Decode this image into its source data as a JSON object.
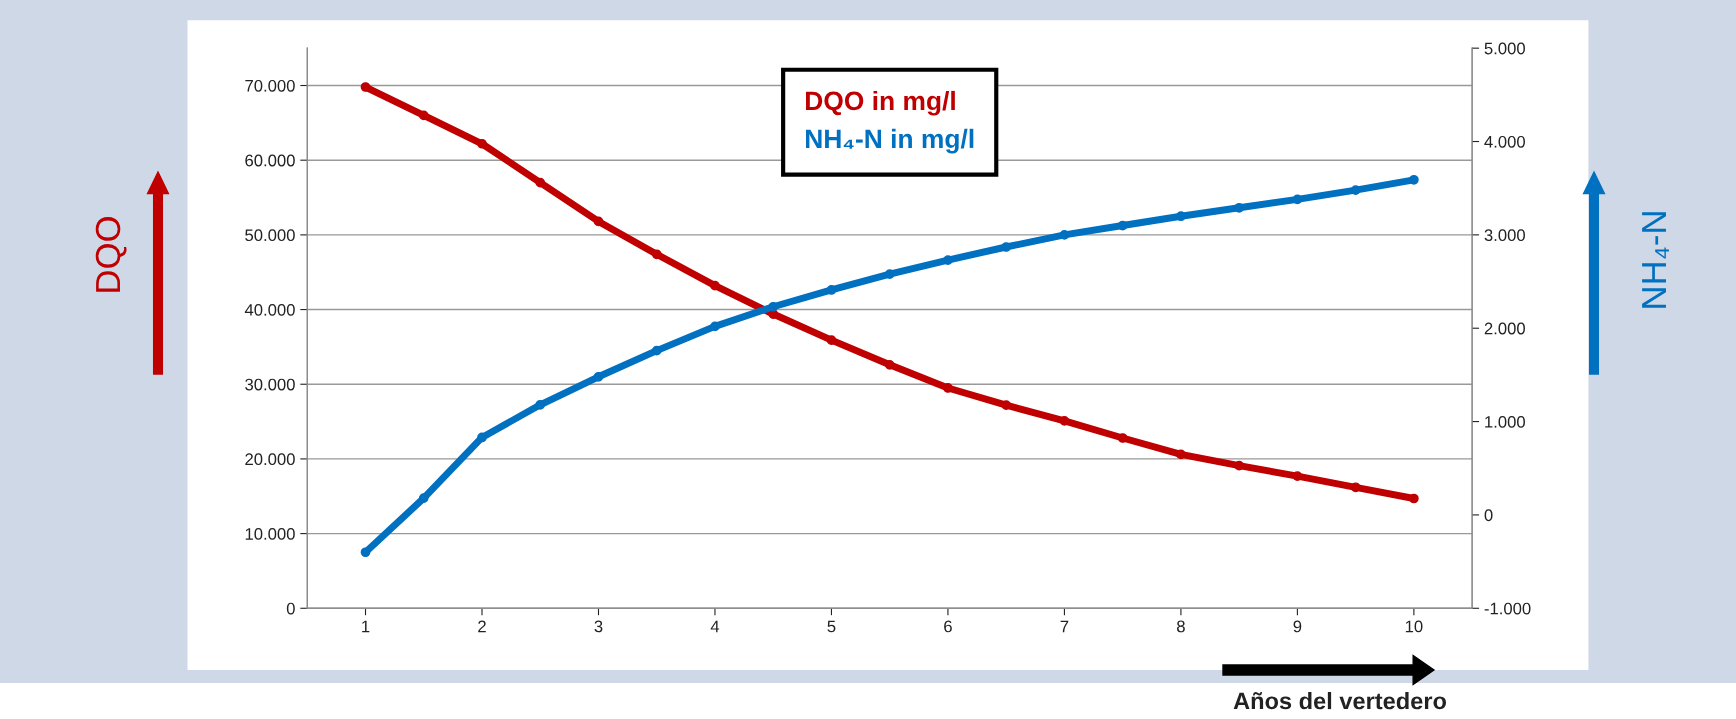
{
  "chart_data": {
    "type": "line",
    "xlabel": "Años del vertedero",
    "ylabel": "DQO",
    "y2label": "NH₄-N",
    "x": [
      1,
      1.5,
      2,
      2.5,
      3,
      3.5,
      4,
      4.5,
      5,
      5.5,
      6,
      6.5,
      7,
      7.5,
      8,
      8.5,
      9,
      9.5,
      10
    ],
    "series": [
      {
        "name": "DQO in mg/l",
        "color": "#c00000",
        "values": [
          69800,
          66000,
          62200,
          57000,
          51800,
          47400,
          43200,
          39400,
          35900,
          32600,
          29500,
          27200,
          25100,
          22800,
          20600,
          19100,
          17700,
          16200,
          14700
        ]
      },
      {
        "name": "NH₄-N in mg/l",
        "color": "#0070c0",
        "axis": "y2",
        "values": [
          -400,
          180,
          830,
          1180,
          1480,
          1760,
          2020,
          2230,
          2410,
          2580,
          2730,
          2870,
          3000,
          3100,
          3200,
          3290,
          3380,
          3480,
          3590
        ]
      }
    ],
    "xlim": [
      0.5,
      10.5
    ],
    "xticks": [
      1,
      2,
      3,
      4,
      5,
      6,
      7,
      8,
      9,
      10
    ],
    "ylim": [
      0,
      75000
    ],
    "yticks": [
      0,
      {
        "value": 10000,
        "label": "10.000"
      },
      {
        "value": 20000,
        "label": "20.000"
      },
      {
        "value": 30000,
        "label": "30.000"
      },
      {
        "value": 40000,
        "label": "40.000"
      },
      {
        "value": 50000,
        "label": "50.000"
      },
      {
        "value": 60000,
        "label": "60.000"
      },
      {
        "value": 70000,
        "label": "70.000"
      }
    ],
    "y2lim": [
      -1000,
      5000
    ],
    "y2ticks": [
      {
        "value": -1000,
        "label": "-1.000"
      },
      0,
      {
        "value": 1000,
        "label": "1.000"
      },
      {
        "value": 2000,
        "label": "2.000"
      },
      {
        "value": 3000,
        "label": "3.000"
      },
      {
        "value": 4000,
        "label": "4.000"
      },
      {
        "value": 5000,
        "label": "5.000"
      }
    ],
    "grid": "y",
    "legend": "top",
    "marker": "circle",
    "line_style": "solid"
  }
}
